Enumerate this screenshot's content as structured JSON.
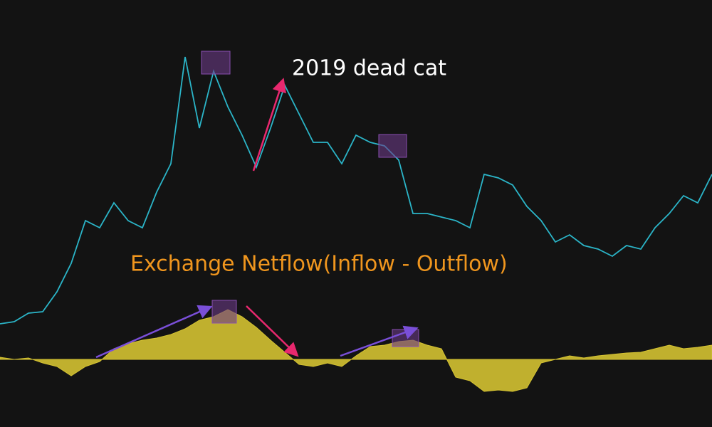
{
  "chart_data": [
    {
      "type": "line",
      "annotation": "2019 dead cat",
      "ylim": [
        0,
        110
      ],
      "series": [
        {
          "color": "#2bb5c8",
          "values": [
            6.25,
            7,
            10,
            10.5,
            17.5,
            27.5,
            42.5,
            40,
            48.75,
            42.5,
            40,
            52.5,
            62.5,
            100,
            75,
            95,
            82.5,
            72.5,
            61.25,
            75,
            90,
            80,
            70,
            70,
            62.5,
            72.5,
            70,
            68.75,
            63.75,
            45,
            45,
            43.75,
            42.5,
            40,
            58.75,
            57.5,
            55,
            47.5,
            42.5,
            35,
            37.5,
            33.75,
            32.5,
            30,
            33.75,
            32.5,
            40,
            45,
            51.25,
            48.75,
            58.75
          ]
        }
      ]
    },
    {
      "type": "area",
      "annotation": "Exchange Netflow(Inflow - Outflow)",
      "ylim": [
        -40,
        60
      ],
      "series": [
        {
          "color": "#d4c232",
          "values": [
            1.5,
            0,
            1,
            -2.5,
            -5,
            -11.5,
            -5,
            -1.5,
            7.5,
            11,
            13.5,
            15,
            17.5,
            21.5,
            27.5,
            30,
            35,
            30,
            22.5,
            13.5,
            5,
            -3.5,
            -5,
            -2.5,
            -5,
            2.5,
            9,
            10,
            12.5,
            13.5,
            10,
            7.5,
            -12.5,
            -15,
            -22.5,
            -21.5,
            -22.5,
            -20,
            -2.5,
            0,
            2.5,
            1,
            2.5,
            3.5,
            4.5,
            5,
            7.5,
            10,
            7.5,
            8.5,
            10
          ]
        }
      ]
    }
  ]
}
